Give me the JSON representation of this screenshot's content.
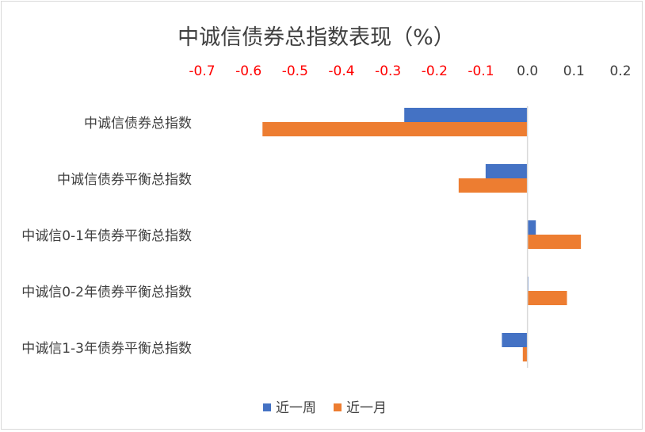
{
  "chart_data": {
    "type": "bar",
    "orientation": "horizontal",
    "title": "中诚信债券总指数表现（%）",
    "categories": [
      "中诚信债券总指数",
      "中诚信债券平衡总指数",
      "中诚信0-1年债券平衡总指数",
      "中诚信0-2年债券平衡总指数",
      "中诚信1-3年债券平衡总指数"
    ],
    "series": [
      {
        "name": "近一周",
        "color": "#4472C4",
        "values": [
          -0.265,
          -0.09,
          0.018,
          0.002,
          -0.055
        ]
      },
      {
        "name": "近一月",
        "color": "#ED7D31",
        "values": [
          -0.57,
          -0.148,
          0.115,
          0.085,
          -0.01
        ]
      }
    ],
    "xlim": [
      -0.7,
      0.2
    ],
    "xticks": [
      "-0.7",
      "-0.6",
      "-0.5",
      "-0.4",
      "-0.3",
      "-0.2",
      "-0.1",
      "0.0",
      "0.1",
      "0.2"
    ],
    "negative_tick_color": "#FF0000",
    "positive_tick_color": "#404040",
    "axis_position": "top",
    "grid": false,
    "legend": "bottom"
  }
}
